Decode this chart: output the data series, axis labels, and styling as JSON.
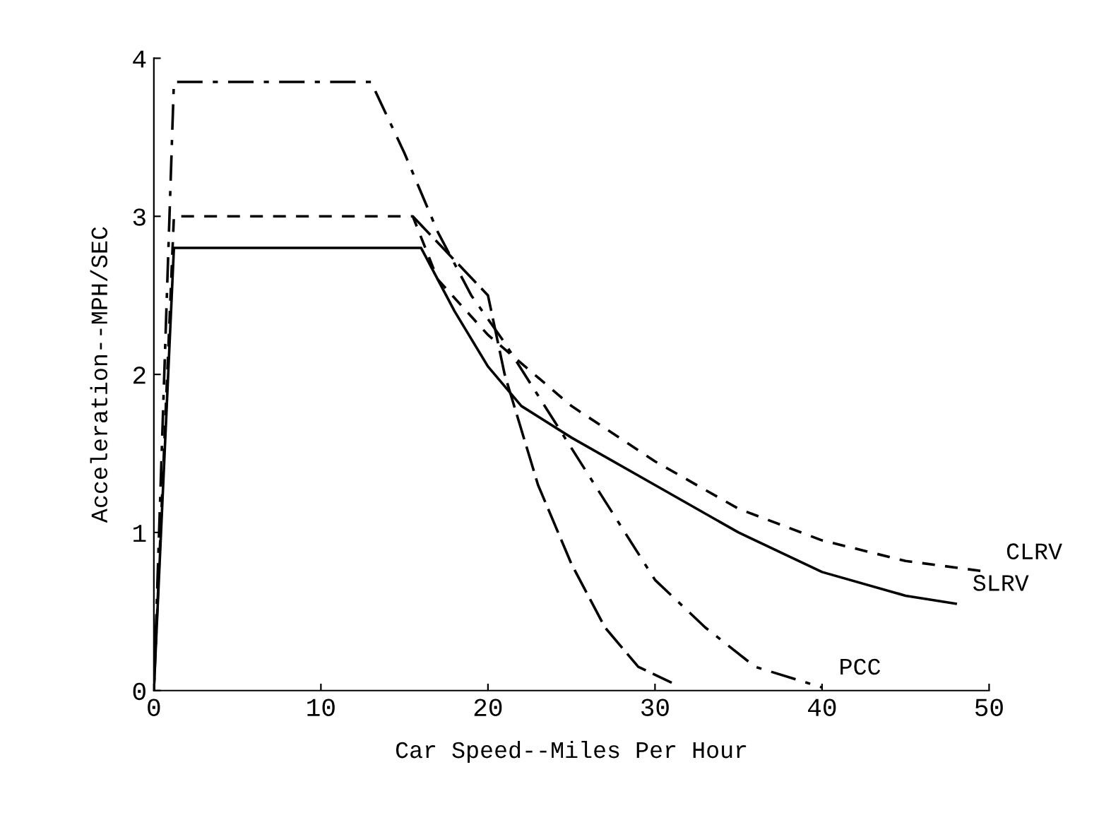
{
  "chart_data": {
    "type": "line",
    "xlabel": "Car Speed--Miles Per Hour",
    "ylabel": "Acceleration--MPH/SEC",
    "xlim": [
      0,
      50
    ],
    "ylim": [
      0,
      4
    ],
    "xticks": [
      0,
      10,
      20,
      30,
      40,
      50
    ],
    "yticks": [
      0,
      1,
      2,
      3,
      4
    ],
    "grid": false,
    "legend": false,
    "marker": "none",
    "series": [
      {
        "name": "CLRV",
        "color": "#000000",
        "line_style": "dashed",
        "x": [
          0,
          1.2,
          15.5,
          17,
          20,
          25,
          30,
          35,
          40,
          45,
          50
        ],
        "values": [
          0,
          3.0,
          3.0,
          2.6,
          2.25,
          1.8,
          1.45,
          1.15,
          0.95,
          0.82,
          0.75
        ]
      },
      {
        "name": "SLRV",
        "color": "#000000",
        "line_style": "solid",
        "x": [
          0,
          1.2,
          16,
          18,
          20,
          22,
          25,
          30,
          35,
          40,
          45,
          48
        ],
        "values": [
          0,
          2.8,
          2.8,
          2.4,
          2.05,
          1.8,
          1.6,
          1.3,
          1.0,
          0.75,
          0.6,
          0.55
        ]
      },
      {
        "name": "PCC",
        "color": "#000000",
        "line_style": "dashdot",
        "x": [
          0,
          1.2,
          13,
          15,
          17,
          19,
          21,
          24,
          27,
          30,
          33,
          36,
          40
        ],
        "values": [
          0,
          3.85,
          3.85,
          3.4,
          2.9,
          2.5,
          2.2,
          1.7,
          1.2,
          0.7,
          0.4,
          0.15,
          0.02
        ]
      },
      {
        "color": "#000000",
        "line_style": "longdash",
        "x": [
          15.5,
          20,
          21,
          23,
          25,
          27,
          29,
          31
        ],
        "values": [
          3.0,
          2.5,
          2.0,
          1.3,
          0.8,
          0.4,
          0.15,
          0.05
        ]
      }
    ]
  }
}
